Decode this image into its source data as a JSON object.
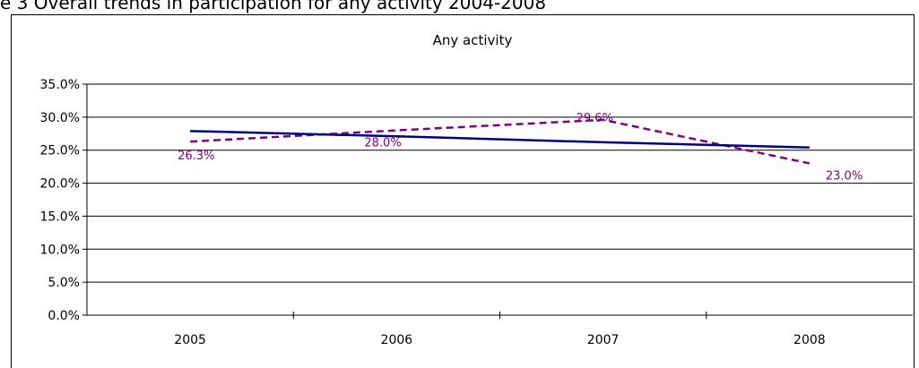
{
  "figure_caption": "e 3 Overall trends in participation for any activity 2004-2008",
  "chart_data": {
    "type": "line",
    "title": "Any activity",
    "xlabel": "",
    "ylabel": "",
    "categories": [
      "2005",
      "2006",
      "2007",
      "2008"
    ],
    "ylim": [
      0,
      35
    ],
    "yticks": [
      0,
      5,
      10,
      15,
      20,
      25,
      30,
      35
    ],
    "ytick_labels": [
      "0.0%",
      "5.0%",
      "10.0%",
      "15.0%",
      "20.0%",
      "25.0%",
      "30.0%",
      "35.0%"
    ],
    "grid": true,
    "legend": "none",
    "series": [
      {
        "name": "",
        "style": "dashed",
        "color": "#800080",
        "values": [
          26.3,
          28.0,
          29.6,
          23.0
        ],
        "labels": [
          "26.3%",
          "28.0%",
          "29.6%",
          "23.0%"
        ]
      },
      {
        "name": "",
        "style": "solid",
        "color": "#000080",
        "values": [
          27.9,
          27.1,
          26.2,
          25.4
        ],
        "labels": []
      }
    ]
  }
}
